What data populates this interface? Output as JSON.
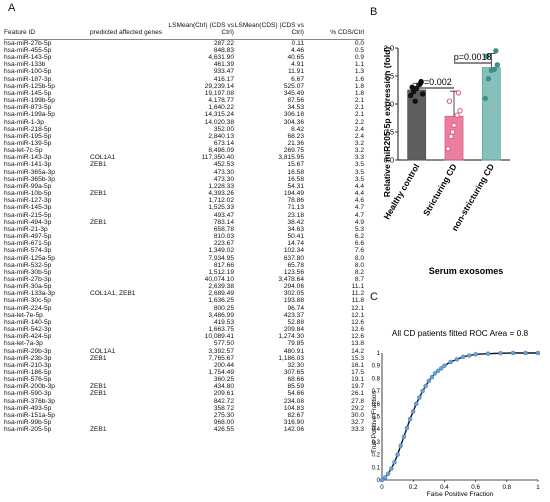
{
  "panel_a": {
    "letter": "A",
    "headers": {
      "feature": "Feature ID",
      "predicted": "predicted affected genes",
      "ls_ctrl": "LSMean(Ctrl) (CDS vs Ctrl)",
      "ls_cds": "LSMean(CDS) (CDS vs Ctrl)",
      "pct": "% CDS/Ctrl"
    },
    "rows": [
      [
        "hsa-miR-27b-5p",
        "",
        "287.22",
        "0.11",
        "0.0"
      ],
      [
        "hsa-miR-455-5p",
        "",
        "848.83",
        "4.46",
        "0.5"
      ],
      [
        "hsa-miR-143-5p",
        "",
        "4,631.90",
        "40.65",
        "0.9"
      ],
      [
        "hsa-miR-133b",
        "",
        "461.39",
        "4.91",
        "1.1"
      ],
      [
        "hsa-miR-100-5p",
        "",
        "933.47",
        "11.91",
        "1.3"
      ],
      [
        "hsa-miR-187-3p",
        "",
        "416.17",
        "6.67",
        "1.6"
      ],
      [
        "hsa-miR-125b-5p",
        "",
        "29,239.14",
        "525.07",
        "1.8"
      ],
      [
        "hsa-miR-145-5p",
        "",
        "19,197.08",
        "345.49",
        "1.8"
      ],
      [
        "hsa-miR-199b-5p",
        "",
        "4,178.77",
        "87.56",
        "2.1"
      ],
      [
        "hsa-miR-873-5p",
        "",
        "1,640.22",
        "34.53",
        "2.1"
      ],
      [
        "hsa-miR-199a-5p",
        "",
        "14,315.24",
        "306.18",
        "2.1"
      ],
      [
        "hsa-miR-1-3p",
        "",
        "14,020.38",
        "304.36",
        "2.2"
      ],
      [
        "hsa-miR-218-5p",
        "",
        "352.00",
        "8.42",
        "2.4"
      ],
      [
        "hsa-miR-195-5p",
        "",
        "2,840.13",
        "68.23",
        "2.4"
      ],
      [
        "hsa-miR-139-5p",
        "",
        "673.14",
        "21.36",
        "3.2"
      ],
      [
        "hsa-let-7c-5p",
        "",
        "8,498.09",
        "269.75",
        "3.2"
      ],
      [
        "hsa-miR-143-3p",
        "COL1A1",
        "117,350.40",
        "3,815.95",
        "3.3"
      ],
      [
        "hsa-miR-141-3p",
        "ZEB1",
        "452.53",
        "15.67",
        "3.5"
      ],
      [
        "hsa-miR-365a-3p",
        "",
        "473.30",
        "16.58",
        "3.5"
      ],
      [
        "hsa-miR-365b-3p",
        "",
        "473.30",
        "16.58",
        "3.5"
      ],
      [
        "hsa-miR-99a-5p",
        "",
        "1,228.33",
        "54.31",
        "4.4"
      ],
      [
        "hsa-miR-10b-5p",
        "ZEB1",
        "4,393.26",
        "194.49",
        "4.4"
      ],
      [
        "hsa-miR-127-3p",
        "",
        "1,712.02",
        "78.86",
        "4.6"
      ],
      [
        "hsa-miR-145-3p",
        "",
        "1,525.33",
        "71.13",
        "4.7"
      ],
      [
        "hsa-miR-215-5p",
        "",
        "493.47",
        "23.18",
        "4.7"
      ],
      [
        "hsa-miR-494-3p",
        "ZEB1",
        "783.14",
        "38.42",
        "4.9"
      ],
      [
        "hsa-miR-21-3p",
        "",
        "658.78",
        "34.63",
        "5.3"
      ],
      [
        "hsa-miR-497-5p",
        "",
        "810.03",
        "50.41",
        "6.2"
      ],
      [
        "hsa-miR-671-5p",
        "",
        "223.67",
        "14.74",
        "6.6"
      ],
      [
        "hsa-miR-574-3p",
        "",
        "1,349.02",
        "102.34",
        "7.6"
      ],
      [
        "hsa-miR-125a-5p",
        "",
        "7,934.95",
        "637.80",
        "8.0"
      ],
      [
        "hsa-miR-532-5p",
        "",
        "817.66",
        "65.78",
        "8.0"
      ],
      [
        "hsa-miR-30b-5p",
        "",
        "1,512.19",
        "123.56",
        "8.2"
      ],
      [
        "hsa-miR-27b-3p",
        "",
        "40,074.10",
        "3,478.64",
        "8.7"
      ],
      [
        "hsa-miR-30a-5p",
        "",
        "2,639.38",
        "294.06",
        "11.1"
      ],
      [
        "hsa-miR-133a-3p",
        "COL1A1, ZEB1",
        "2,689.49",
        "302.05",
        "11.2"
      ],
      [
        "hsa-miR-30c-5p",
        "",
        "1,636.25",
        "193.88",
        "11.8"
      ],
      [
        "hsa-miR-224-5p",
        "",
        "800.25",
        "96.74",
        "12.1"
      ],
      [
        "hsa-let-7e-5p",
        "",
        "3,486.99",
        "423.37",
        "12.1"
      ],
      [
        "hsa-miR-140-5p",
        "",
        "419.53",
        "52.88",
        "12.6"
      ],
      [
        "hsa-miR-542-3p",
        "",
        "1,663.75",
        "209.84",
        "12.6"
      ],
      [
        "hsa-miR-424-5p",
        "",
        "10,089.41",
        "1,274.30",
        "12.6"
      ],
      [
        "hsa-let-7a-3p",
        "",
        "577.50",
        "79.85",
        "13.8"
      ],
      [
        "hsa-miR-29b-3p",
        "COL1A1",
        "3,392.57",
        "480.91",
        "14.2"
      ],
      [
        "hsa-miR-23b-3p",
        "ZEB1",
        "7,765.67",
        "1,186.03",
        "15.3"
      ],
      [
        "hsa-miR-210-3p",
        "",
        "200.44",
        "32.30",
        "16.1"
      ],
      [
        "hsa-miR-186-5p",
        "",
        "1,754.49",
        "307.65",
        "17.5"
      ],
      [
        "hsa-miR-576-5p",
        "",
        "360.25",
        "68.66",
        "19.1"
      ],
      [
        "hsa-miR-200b-3p",
        "ZEB1",
        "434.80",
        "85.59",
        "19.7"
      ],
      [
        "hsa-miR-590-3p",
        "ZEB1",
        "209.61",
        "54.66",
        "26.1"
      ],
      [
        "hsa-miR-376b-3p",
        "",
        "842.72",
        "234.08",
        "27.8"
      ],
      [
        "hsa-miR-493-5p",
        "",
        "358.72",
        "104.83",
        "29.2"
      ],
      [
        "hsa-miR-151a-5p",
        "",
        "275.30",
        "82.67",
        "30.0"
      ],
      [
        "hsa-miR-99b-5p",
        "",
        "968.00",
        "316.90",
        "32.7"
      ],
      [
        "hsa-miR-205-5p",
        "ZEB1",
        "426.55",
        "142.06",
        "33.3"
      ]
    ]
  },
  "chart_data": [
    {
      "type": "bar",
      "panel_letter": "B",
      "categories": [
        "Healthy control",
        "Stricturing CD",
        "non-stricturing CD"
      ],
      "values": [
        1.25,
        0.78,
        1.65
      ],
      "errors": [
        0.12,
        0.45,
        0.25
      ],
      "points": [
        [
          1.15,
          1.22,
          1.28,
          1.35,
          1.18,
          1.3,
          1.4,
          1.05
        ],
        [
          0.2,
          0.42,
          0.62,
          0.8,
          0.88,
          1.05,
          1.2,
          0.5
        ],
        [
          1.1,
          1.45,
          1.6,
          1.62,
          1.7,
          1.85,
          1.95
        ]
      ],
      "bar_colors": [
        "#555555",
        "#e3567d",
        "#5ea9a4"
      ],
      "point_colors": [
        "#111111",
        "#e3567d",
        "#3e8f8a"
      ],
      "ylabel": "Relative miR205-5p expression (fold)",
      "xlabel": "Serum exosomes",
      "ylim": [
        0,
        2.0
      ],
      "yticks": [
        "0.0",
        "0.5",
        "1.0",
        "1.5",
        "2.0"
      ],
      "annotations": [
        {
          "text": "p=0.002",
          "between": [
            0,
            1
          ]
        },
        {
          "text": "p=0.0018",
          "between": [
            1,
            2
          ]
        }
      ]
    },
    {
      "type": "line",
      "panel_letter": "C",
      "title": "All CD patients fitted ROC Area = 0.8",
      "xlabel": "False Positive Fraction",
      "ylabel": "True Positive Fraction",
      "xlim": [
        0,
        1
      ],
      "ylim": [
        0,
        1
      ],
      "xticks": [
        "0",
        "0.2",
        "0.4",
        "0.6",
        "0.8",
        "1"
      ],
      "yticks": [
        "0",
        "0.1",
        "0.2",
        "0.3",
        "0.4",
        "0.5",
        "0.6",
        "0.7",
        "0.8",
        "0.9",
        "1"
      ],
      "series": [
        {
          "x": [
            0,
            0.02,
            0.04,
            0.06,
            0.08,
            0.1,
            0.12,
            0.14,
            0.16,
            0.18,
            0.2,
            0.22,
            0.24,
            0.26,
            0.28,
            0.3,
            0.32,
            0.34,
            0.36,
            0.38,
            0.4,
            0.44,
            0.48,
            0.52,
            0.56,
            0.6,
            0.68,
            0.76,
            0.84,
            0.92,
            1.0
          ],
          "y": [
            0,
            0.02,
            0.05,
            0.09,
            0.14,
            0.2,
            0.27,
            0.34,
            0.41,
            0.48,
            0.54,
            0.6,
            0.65,
            0.7,
            0.74,
            0.78,
            0.81,
            0.84,
            0.86,
            0.88,
            0.9,
            0.93,
            0.95,
            0.97,
            0.98,
            0.99,
            0.995,
            0.998,
            1.0,
            1.0,
            1.0
          ],
          "line_color": "#111111",
          "marker_color": "#6aa0d8"
        }
      ]
    }
  ]
}
